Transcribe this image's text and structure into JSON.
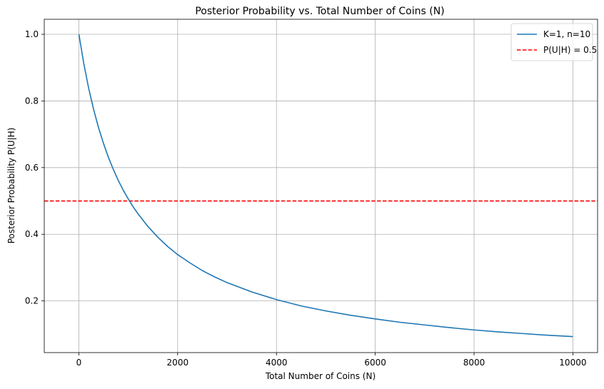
{
  "chart_data": {
    "type": "line",
    "title": "Posterior Probability vs. Total Number of Coins (N)",
    "xlabel": "Total Number of Coins (N)",
    "ylabel": "Posterior Probability P(U|H)",
    "xlim": [
      -700,
      10500
    ],
    "ylim": [
      0.045,
      1.045
    ],
    "xticks": [
      0,
      2000,
      4000,
      6000,
      8000,
      10000
    ],
    "xtick_labels": [
      "0",
      "2000",
      "4000",
      "6000",
      "8000",
      "10000"
    ],
    "yticks": [
      0.2,
      0.4,
      0.6,
      0.8,
      1.0
    ],
    "ytick_labels": [
      "0.2",
      "0.4",
      "0.6",
      "0.8",
      "1.0"
    ],
    "grid": true,
    "legend_position": "top-right",
    "series": [
      {
        "name": "K=1, n=10",
        "color": "#1f77b4",
        "style": "solid",
        "x": [
          1,
          100,
          200,
          300,
          400,
          500,
          600,
          700,
          800,
          900,
          1000,
          1100,
          1200,
          1400,
          1600,
          1800,
          2000,
          2250,
          2500,
          2750,
          3000,
          3500,
          4000,
          4500,
          5000,
          5500,
          6000,
          6500,
          7000,
          7500,
          8000,
          8500,
          9000,
          9500,
          10000
        ],
        "y": [
          1.0,
          0.912,
          0.837,
          0.774,
          0.719,
          0.672,
          0.63,
          0.594,
          0.561,
          0.532,
          0.506,
          0.482,
          0.461,
          0.423,
          0.391,
          0.363,
          0.339,
          0.314,
          0.291,
          0.272,
          0.255,
          0.227,
          0.204,
          0.185,
          0.17,
          0.157,
          0.146,
          0.136,
          0.128,
          0.12,
          0.113,
          0.107,
          0.102,
          0.097,
          0.093
        ]
      },
      {
        "name": "P(U|H) = 0.5",
        "color": "#ff0000",
        "style": "dashed",
        "hline": 0.5
      }
    ]
  }
}
